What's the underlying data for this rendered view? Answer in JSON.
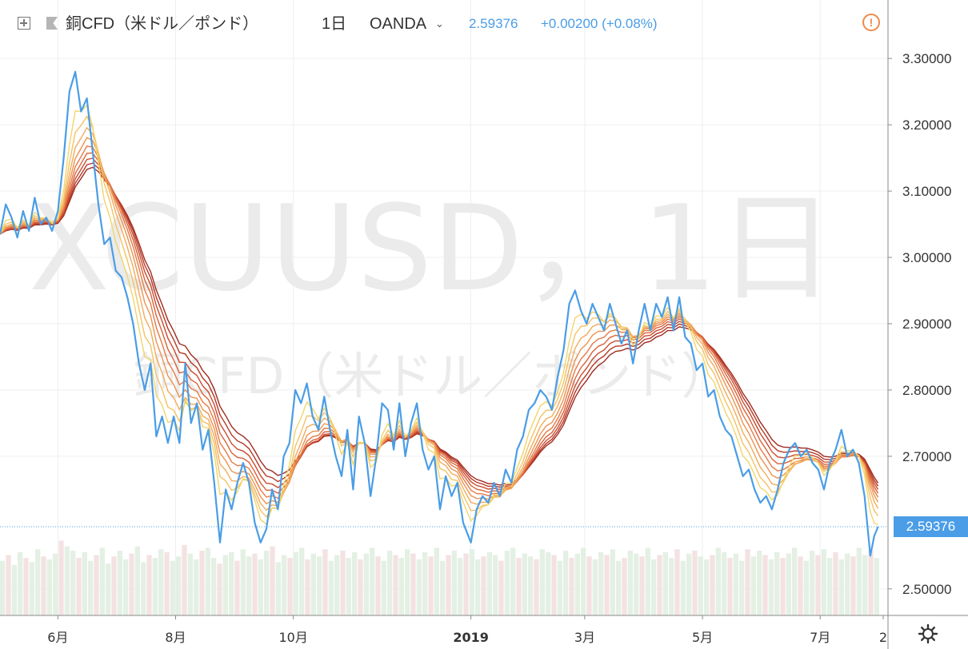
{
  "header": {
    "symbol_label": "銅CFD（米ドル／ポンド）",
    "interval": "1日",
    "exchange": "OANDA",
    "last_price": "2.59376",
    "change": "+0.00200 (+0.08%)"
  },
  "watermark": {
    "line1": "XCUUSD，1日",
    "line2": "銅CFD（米ドル／ポンド）"
  },
  "icons": {
    "fullscreen": "plus-square-icon",
    "symbol": "flag-icon",
    "dropdown": "chevron-down-icon",
    "alert": "alert-circle-icon",
    "settings": "gear-icon"
  },
  "colors": {
    "price_line": "#4a9de6",
    "ribbon": [
      "#f2d56b",
      "#f4c265",
      "#f2ab5c",
      "#ec9350",
      "#e57a45",
      "#d9623a",
      "#c94b2f",
      "#b53826",
      "#a02c20"
    ],
    "volume_up": "#e4f0e4",
    "volume_down": "#f4e2e2",
    "alert": "#f08a4b"
  },
  "chart_data": {
    "type": "line",
    "x_start": "2018-05-02",
    "x_end": "2019-08-01",
    "xticks": [
      {
        "date": "2018-06-01",
        "label": "6月"
      },
      {
        "date": "2018-08-01",
        "label": "8月"
      },
      {
        "date": "2018-10-01",
        "label": "10月"
      },
      {
        "date": "2019-01-01",
        "label": "2019"
      },
      {
        "date": "2019-03-01",
        "label": "3月"
      },
      {
        "date": "2019-05-01",
        "label": "5月"
      },
      {
        "date": "2019-07-01",
        "label": "7月"
      },
      {
        "date": "2019-09-01",
        "label": "2"
      }
    ],
    "ylim": [
      2.46,
      3.34
    ],
    "yticks": [
      {
        "value": 3.3,
        "label": "3.30000"
      },
      {
        "value": 3.2,
        "label": "3.20000"
      },
      {
        "value": 3.1,
        "label": "3.10000"
      },
      {
        "value": 3.0,
        "label": "3.00000"
      },
      {
        "value": 2.9,
        "label": "2.90000"
      },
      {
        "value": 2.8,
        "label": "2.80000"
      },
      {
        "value": 2.7,
        "label": "2.70000"
      },
      {
        "value": 2.5,
        "label": "2.50000"
      }
    ],
    "last_value": 2.59376,
    "price_series": {
      "name": "銅CFD（米ドル／ポンド）",
      "points": [
        [
          "2018-05-02",
          3.035
        ],
        [
          "2018-05-05",
          3.08
        ],
        [
          "2018-05-08",
          3.06
        ],
        [
          "2018-05-11",
          3.03
        ],
        [
          "2018-05-14",
          3.07
        ],
        [
          "2018-05-17",
          3.04
        ],
        [
          "2018-05-20",
          3.09
        ],
        [
          "2018-05-23",
          3.05
        ],
        [
          "2018-05-26",
          3.06
        ],
        [
          "2018-05-29",
          3.04
        ],
        [
          "2018-06-01",
          3.07
        ],
        [
          "2018-06-04",
          3.15
        ],
        [
          "2018-06-07",
          3.25
        ],
        [
          "2018-06-10",
          3.28
        ],
        [
          "2018-06-13",
          3.22
        ],
        [
          "2018-06-16",
          3.24
        ],
        [
          "2018-06-19",
          3.16
        ],
        [
          "2018-06-22",
          3.08
        ],
        [
          "2018-06-25",
          3.02
        ],
        [
          "2018-06-28",
          3.03
        ],
        [
          "2018-07-01",
          2.98
        ],
        [
          "2018-07-04",
          2.97
        ],
        [
          "2018-07-07",
          2.94
        ],
        [
          "2018-07-10",
          2.9
        ],
        [
          "2018-07-13",
          2.84
        ],
        [
          "2018-07-16",
          2.8
        ],
        [
          "2018-07-19",
          2.84
        ],
        [
          "2018-07-22",
          2.73
        ],
        [
          "2018-07-25",
          2.76
        ],
        [
          "2018-07-28",
          2.72
        ],
        [
          "2018-07-31",
          2.76
        ],
        [
          "2018-08-03",
          2.72
        ],
        [
          "2018-08-06",
          2.84
        ],
        [
          "2018-08-09",
          2.75
        ],
        [
          "2018-08-12",
          2.78
        ],
        [
          "2018-08-15",
          2.71
        ],
        [
          "2018-08-18",
          2.74
        ],
        [
          "2018-08-21",
          2.66
        ],
        [
          "2018-08-24",
          2.57
        ],
        [
          "2018-08-27",
          2.65
        ],
        [
          "2018-08-30",
          2.62
        ],
        [
          "2018-09-02",
          2.66
        ],
        [
          "2018-09-05",
          2.69
        ],
        [
          "2018-09-08",
          2.66
        ],
        [
          "2018-09-11",
          2.6
        ],
        [
          "2018-09-14",
          2.57
        ],
        [
          "2018-09-17",
          2.59
        ],
        [
          "2018-09-20",
          2.65
        ],
        [
          "2018-09-23",
          2.62
        ],
        [
          "2018-09-26",
          2.7
        ],
        [
          "2018-09-29",
          2.72
        ],
        [
          "2018-10-02",
          2.8
        ],
        [
          "2018-10-05",
          2.78
        ],
        [
          "2018-10-08",
          2.81
        ],
        [
          "2018-10-11",
          2.76
        ],
        [
          "2018-10-14",
          2.74
        ],
        [
          "2018-10-17",
          2.79
        ],
        [
          "2018-10-20",
          2.74
        ],
        [
          "2018-10-23",
          2.7
        ],
        [
          "2018-10-26",
          2.67
        ],
        [
          "2018-10-29",
          2.74
        ],
        [
          "2018-11-01",
          2.65
        ],
        [
          "2018-11-04",
          2.76
        ],
        [
          "2018-11-07",
          2.72
        ],
        [
          "2018-11-10",
          2.64
        ],
        [
          "2018-11-13",
          2.7
        ],
        [
          "2018-11-16",
          2.78
        ],
        [
          "2018-11-19",
          2.77
        ],
        [
          "2018-11-22",
          2.71
        ],
        [
          "2018-11-25",
          2.78
        ],
        [
          "2018-11-28",
          2.7
        ],
        [
          "2018-12-01",
          2.75
        ],
        [
          "2018-12-04",
          2.78
        ],
        [
          "2018-12-07",
          2.71
        ],
        [
          "2018-12-10",
          2.68
        ],
        [
          "2018-12-13",
          2.7
        ],
        [
          "2018-12-16",
          2.62
        ],
        [
          "2018-12-19",
          2.67
        ],
        [
          "2018-12-22",
          2.64
        ],
        [
          "2018-12-25",
          2.66
        ],
        [
          "2018-12-28",
          2.6
        ],
        [
          "2019-01-01",
          2.57
        ],
        [
          "2019-01-04",
          2.62
        ],
        [
          "2019-01-07",
          2.64
        ],
        [
          "2019-01-10",
          2.63
        ],
        [
          "2019-01-13",
          2.66
        ],
        [
          "2019-01-16",
          2.64
        ],
        [
          "2019-01-19",
          2.68
        ],
        [
          "2019-01-22",
          2.66
        ],
        [
          "2019-01-25",
          2.71
        ],
        [
          "2019-01-28",
          2.73
        ],
        [
          "2019-01-31",
          2.77
        ],
        [
          "2019-02-03",
          2.78
        ],
        [
          "2019-02-06",
          2.8
        ],
        [
          "2019-02-09",
          2.79
        ],
        [
          "2019-02-12",
          2.77
        ],
        [
          "2019-02-15",
          2.82
        ],
        [
          "2019-02-18",
          2.86
        ],
        [
          "2019-02-21",
          2.93
        ],
        [
          "2019-02-24",
          2.95
        ],
        [
          "2019-02-27",
          2.92
        ],
        [
          "2019-03-02",
          2.9
        ],
        [
          "2019-03-05",
          2.93
        ],
        [
          "2019-03-08",
          2.91
        ],
        [
          "2019-03-11",
          2.89
        ],
        [
          "2019-03-14",
          2.93
        ],
        [
          "2019-03-17",
          2.9
        ],
        [
          "2019-03-20",
          2.87
        ],
        [
          "2019-03-23",
          2.89
        ],
        [
          "2019-03-26",
          2.84
        ],
        [
          "2019-03-29",
          2.89
        ],
        [
          "2019-04-01",
          2.93
        ],
        [
          "2019-04-04",
          2.89
        ],
        [
          "2019-04-07",
          2.93
        ],
        [
          "2019-04-10",
          2.91
        ],
        [
          "2019-04-13",
          2.94
        ],
        [
          "2019-04-16",
          2.89
        ],
        [
          "2019-04-19",
          2.94
        ],
        [
          "2019-04-22",
          2.88
        ],
        [
          "2019-04-25",
          2.87
        ],
        [
          "2019-04-28",
          2.83
        ],
        [
          "2019-05-01",
          2.84
        ],
        [
          "2019-05-04",
          2.79
        ],
        [
          "2019-05-07",
          2.8
        ],
        [
          "2019-05-10",
          2.76
        ],
        [
          "2019-05-13",
          2.74
        ],
        [
          "2019-05-16",
          2.73
        ],
        [
          "2019-05-19",
          2.7
        ],
        [
          "2019-05-22",
          2.67
        ],
        [
          "2019-05-25",
          2.68
        ],
        [
          "2019-05-28",
          2.65
        ],
        [
          "2019-05-31",
          2.63
        ],
        [
          "2019-06-03",
          2.64
        ],
        [
          "2019-06-06",
          2.62
        ],
        [
          "2019-06-09",
          2.65
        ],
        [
          "2019-06-12",
          2.69
        ],
        [
          "2019-06-15",
          2.71
        ],
        [
          "2019-06-18",
          2.72
        ],
        [
          "2019-06-21",
          2.7
        ],
        [
          "2019-06-24",
          2.71
        ],
        [
          "2019-06-27",
          2.69
        ],
        [
          "2019-06-30",
          2.68
        ],
        [
          "2019-07-03",
          2.65
        ],
        [
          "2019-07-06",
          2.69
        ],
        [
          "2019-07-09",
          2.71
        ],
        [
          "2019-07-12",
          2.74
        ],
        [
          "2019-07-15",
          2.7
        ],
        [
          "2019-07-18",
          2.71
        ],
        [
          "2019-07-21",
          2.69
        ],
        [
          "2019-07-24",
          2.64
        ],
        [
          "2019-07-27",
          2.55
        ],
        [
          "2019-07-29",
          2.58
        ],
        [
          "2019-07-31",
          2.59376
        ]
      ]
    },
    "ribbon_periods": [
      10,
      15,
      20,
      25,
      30,
      35,
      40,
      45,
      50
    ],
    "volume": {
      "max": 100,
      "values": [
        38,
        42,
        35,
        44,
        40,
        37,
        46,
        41,
        39,
        43,
        52,
        48,
        45,
        40,
        44,
        38,
        42,
        47,
        36,
        41,
        45,
        39,
        43,
        48,
        37,
        42,
        40,
        46,
        44,
        38,
        41,
        49,
        43,
        39,
        45,
        47,
        40,
        36,
        42,
        44,
        38,
        46,
        41,
        43,
        39,
        45,
        48,
        37,
        42,
        40,
        44,
        47,
        39,
        43,
        41,
        46,
        38,
        42,
        45,
        40,
        44,
        39,
        43,
        47,
        41,
        38,
        45,
        42,
        40,
        46,
        43,
        39,
        44,
        41,
        47,
        38,
        42,
        45,
        40,
        43,
        46,
        39,
        41,
        44,
        42,
        38,
        45,
        47,
        40,
        43,
        41,
        39,
        46,
        44,
        42,
        38,
        45,
        40,
        43,
        47,
        41,
        39,
        44,
        42,
        46,
        38,
        40,
        45,
        43,
        41,
        47,
        39,
        42,
        44,
        40,
        46,
        38,
        43,
        45,
        41,
        39,
        42,
        47,
        44,
        40,
        43,
        38,
        46,
        41,
        45,
        42,
        39,
        44,
        40,
        43,
        47,
        41,
        38,
        45,
        42,
        46,
        40,
        44,
        39,
        43,
        41,
        47,
        42,
        45,
        40
      ]
    }
  }
}
